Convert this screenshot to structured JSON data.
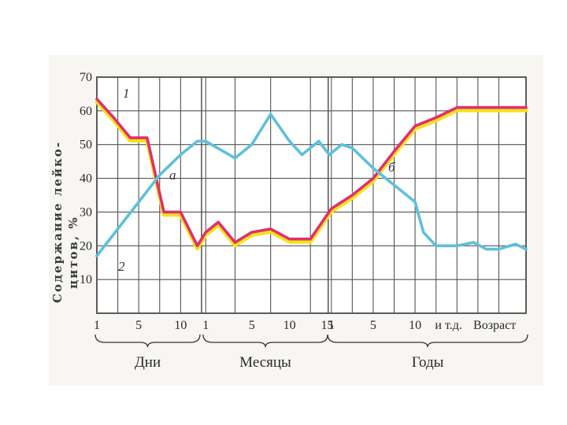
{
  "chart_data": {
    "type": "line",
    "ylabel_lines": [
      "Содержание лейко-",
      "цитов, %"
    ],
    "ylim": [
      0,
      70
    ],
    "yticks": [
      "10",
      "20",
      "30",
      "40",
      "50",
      "60",
      "70"
    ],
    "x_groups": [
      {
        "name": "Дни",
        "ticks": [
          "1",
          "5",
          "10"
        ]
      },
      {
        "name": "Месяцы",
        "ticks": [
          "1",
          "5",
          "10",
          "15"
        ]
      },
      {
        "name": "Годы",
        "ticks": [
          "1",
          "5",
          "10",
          "и т.д.",
          "Возраст"
        ]
      }
    ],
    "grid": true,
    "annotations": {
      "series1_label": "1",
      "series2_label": "2",
      "point_a": "а",
      "point_b": "б"
    },
    "series": [
      {
        "name": "1",
        "color": "#e0306e",
        "shadow_color": "#f2e21a",
        "points": [
          [
            0.0,
            63.5
          ],
          [
            0.8,
            58
          ],
          [
            1.6,
            52
          ],
          [
            2.4,
            52
          ],
          [
            3.2,
            30
          ],
          [
            4.0,
            30
          ],
          [
            4.8,
            20
          ],
          [
            5.2,
            24
          ],
          [
            5.8,
            27
          ],
          [
            6.6,
            21
          ],
          [
            7.4,
            24
          ],
          [
            8.3,
            25
          ],
          [
            9.2,
            22
          ],
          [
            10.2,
            22
          ],
          [
            11.2,
            31
          ],
          [
            12.2,
            35
          ],
          [
            13.2,
            40
          ],
          [
            14.2,
            48
          ],
          [
            15.2,
            55.5
          ],
          [
            16.2,
            58
          ],
          [
            17.2,
            61
          ],
          [
            18.2,
            61
          ],
          [
            19.2,
            61
          ],
          [
            20.5,
            61
          ]
        ]
      },
      {
        "name": "2",
        "color": "#5ec0dc",
        "points": [
          [
            0.0,
            17
          ],
          [
            1.0,
            25
          ],
          [
            2.0,
            33
          ],
          [
            3.0,
            41
          ],
          [
            4.0,
            47
          ],
          [
            4.8,
            51
          ],
          [
            5.2,
            51
          ],
          [
            6.6,
            46
          ],
          [
            7.4,
            50
          ],
          [
            8.3,
            59
          ],
          [
            9.2,
            51
          ],
          [
            9.8,
            47
          ],
          [
            10.6,
            51
          ],
          [
            11.1,
            47
          ],
          [
            11.7,
            50
          ],
          [
            12.2,
            49
          ],
          [
            13.2,
            43
          ],
          [
            14.2,
            38
          ],
          [
            15.2,
            33
          ],
          [
            15.6,
            24
          ],
          [
            16.2,
            20
          ],
          [
            17.2,
            20
          ],
          [
            18.0,
            21
          ],
          [
            18.6,
            19
          ],
          [
            19.2,
            19
          ],
          [
            20.0,
            20.5
          ],
          [
            20.5,
            19
          ]
        ]
      }
    ]
  }
}
